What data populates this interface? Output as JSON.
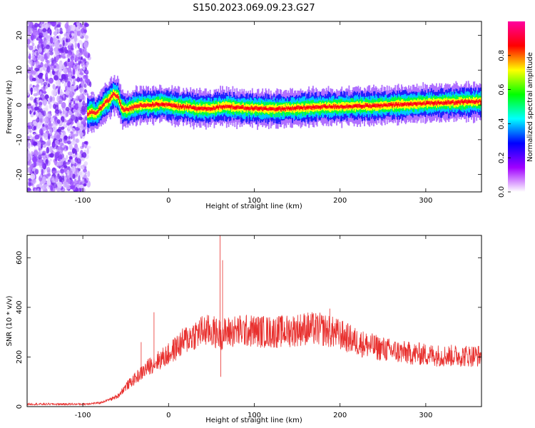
{
  "title": "S150.2023.069.09.23.G27",
  "chart_data": [
    {
      "type": "heatmap",
      "name": "spectrogram",
      "xlabel": "Height of straight line (km)",
      "ylabel": "Frequency (Hz)",
      "xlim": [
        -165,
        365
      ],
      "ylim": [
        -25,
        24
      ],
      "x_ticks": [
        -100,
        0,
        100,
        200,
        300
      ],
      "y_ticks": [
        -20,
        -10,
        0,
        10,
        20
      ],
      "colorbar": {
        "label": "Normalized spectral amplitude",
        "range": [
          0,
          1
        ],
        "ticks": [
          0.0,
          0.2,
          0.4,
          0.6,
          0.8
        ],
        "tick_labels": [
          "0.0",
          "0.2",
          "0.4",
          "0.6",
          "0.8"
        ],
        "colors": [
          "#ffffff",
          "#a000ff",
          "#0000ff",
          "#00ffff",
          "#00ff00",
          "#ffff00",
          "#ff0000",
          "#ff00a0"
        ]
      },
      "noise_region": [
        -165,
        -95
      ],
      "ridge": [
        {
          "x": -95,
          "y": -2.5
        },
        {
          "x": -90,
          "y": -2.0
        },
        {
          "x": -85,
          "y": -2.5
        },
        {
          "x": -80,
          "y": -1.0
        },
        {
          "x": -75,
          "y": 0.5
        },
        {
          "x": -70,
          "y": 1.5
        },
        {
          "x": -65,
          "y": 3.0
        },
        {
          "x": -60,
          "y": 2.5
        },
        {
          "x": -55,
          "y": -1.0
        },
        {
          "x": -50,
          "y": -1.5
        },
        {
          "x": -45,
          "y": -1.0
        },
        {
          "x": -40,
          "y": -0.5
        },
        {
          "x": -30,
          "y": 0.0
        },
        {
          "x": -20,
          "y": 0.0
        },
        {
          "x": -10,
          "y": 0.3
        },
        {
          "x": 0,
          "y": 0.0
        },
        {
          "x": 10,
          "y": -0.5
        },
        {
          "x": 20,
          "y": -0.5
        },
        {
          "x": 30,
          "y": -1.0
        },
        {
          "x": 40,
          "y": -1.0
        },
        {
          "x": 50,
          "y": -1.0
        },
        {
          "x": 60,
          "y": -0.5
        },
        {
          "x": 70,
          "y": -0.5
        },
        {
          "x": 80,
          "y": -0.8
        },
        {
          "x": 100,
          "y": -1.0
        },
        {
          "x": 120,
          "y": -1.2
        },
        {
          "x": 140,
          "y": -1.0
        },
        {
          "x": 160,
          "y": -0.8
        },
        {
          "x": 180,
          "y": -0.5
        },
        {
          "x": 200,
          "y": -0.5
        },
        {
          "x": 220,
          "y": -0.3
        },
        {
          "x": 240,
          "y": -0.3
        },
        {
          "x": 260,
          "y": 0.0
        },
        {
          "x": 280,
          "y": 0.2
        },
        {
          "x": 300,
          "y": 0.5
        },
        {
          "x": 320,
          "y": 0.6
        },
        {
          "x": 340,
          "y": 0.8
        },
        {
          "x": 365,
          "y": 1.0
        }
      ]
    },
    {
      "type": "line",
      "name": "snr",
      "xlabel": "Height of straight line (km)",
      "ylabel": "SNR (10 * v/v)",
      "xlim": [
        -165,
        365
      ],
      "ylim": [
        0,
        690
      ],
      "x_ticks": [
        -100,
        0,
        100,
        200,
        300
      ],
      "y_ticks": [
        0,
        200,
        400,
        600
      ],
      "color": "#e8302e",
      "envelope": [
        {
          "x": -165,
          "y": 10
        },
        {
          "x": -100,
          "y": 10
        },
        {
          "x": -80,
          "y": 15
        },
        {
          "x": -60,
          "y": 40
        },
        {
          "x": -50,
          "y": 80
        },
        {
          "x": -40,
          "y": 110
        },
        {
          "x": -30,
          "y": 140
        },
        {
          "x": -20,
          "y": 170
        },
        {
          "x": -10,
          "y": 190
        },
        {
          "x": 0,
          "y": 210
        },
        {
          "x": 10,
          "y": 240
        },
        {
          "x": 20,
          "y": 270
        },
        {
          "x": 30,
          "y": 290
        },
        {
          "x": 40,
          "y": 305
        },
        {
          "x": 50,
          "y": 305
        },
        {
          "x": 60,
          "y": 290
        },
        {
          "x": 70,
          "y": 300
        },
        {
          "x": 80,
          "y": 305
        },
        {
          "x": 100,
          "y": 305
        },
        {
          "x": 120,
          "y": 300
        },
        {
          "x": 140,
          "y": 305
        },
        {
          "x": 160,
          "y": 315
        },
        {
          "x": 180,
          "y": 310
        },
        {
          "x": 200,
          "y": 290
        },
        {
          "x": 220,
          "y": 260
        },
        {
          "x": 240,
          "y": 240
        },
        {
          "x": 260,
          "y": 225
        },
        {
          "x": 280,
          "y": 215
        },
        {
          "x": 300,
          "y": 210
        },
        {
          "x": 320,
          "y": 205
        },
        {
          "x": 340,
          "y": 205
        },
        {
          "x": 365,
          "y": 205
        }
      ],
      "spikes": [
        {
          "x": -32,
          "y": 260
        },
        {
          "x": -17,
          "y": 380
        },
        {
          "x": 60,
          "y": 690
        },
        {
          "x": 63,
          "y": 590
        },
        {
          "x": 61,
          "y": 120
        },
        {
          "x": 188,
          "y": 395
        }
      ]
    }
  ]
}
